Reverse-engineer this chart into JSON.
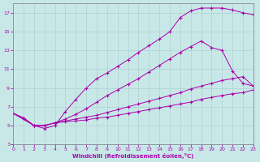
{
  "bg_color": "#c8e8e8",
  "line_color": "#aa00aa",
  "xlabel": "Windchill (Refroidissement éolien,°C)",
  "xlim": [
    0,
    23
  ],
  "ylim": [
    3,
    18
  ],
  "xticks": [
    0,
    1,
    2,
    3,
    4,
    5,
    6,
    7,
    8,
    9,
    10,
    11,
    12,
    13,
    14,
    15,
    16,
    17,
    18,
    19,
    20,
    21,
    22,
    23
  ],
  "yticks": [
    3,
    5,
    7,
    9,
    11,
    13,
    15,
    17
  ],
  "curve_top_x": [
    0,
    2,
    3,
    4,
    5,
    6,
    7,
    8,
    9,
    10,
    11,
    12,
    13,
    14,
    15,
    16,
    17,
    18,
    19,
    20,
    21,
    22,
    23
  ],
  "curve_top_y": [
    6.3,
    5.0,
    4.7,
    5.0,
    6.5,
    7.8,
    9.0,
    10.0,
    10.6,
    11.3,
    12.0,
    12.8,
    13.5,
    14.2,
    15.0,
    16.5,
    17.2,
    17.5,
    17.5,
    17.5,
    17.3,
    17.0,
    16.8
  ],
  "curve_mid_x": [
    0,
    1,
    2,
    3,
    4,
    5,
    6,
    7,
    8,
    9,
    10,
    11,
    12,
    13,
    14,
    15,
    16,
    17,
    18,
    19,
    20,
    21,
    22,
    23
  ],
  "curve_mid_y": [
    6.3,
    5.8,
    5.0,
    5.0,
    5.3,
    5.7,
    6.2,
    6.8,
    7.5,
    8.2,
    8.8,
    9.4,
    10.0,
    10.7,
    11.4,
    12.1,
    12.8,
    13.4,
    14.0,
    13.3,
    13.0,
    10.8,
    9.5,
    9.2
  ],
  "curve_low1_x": [
    0,
    1,
    2,
    3,
    4,
    5,
    6,
    7,
    8,
    9,
    10,
    11,
    12,
    13,
    14,
    15,
    16,
    17,
    18,
    19,
    20,
    21,
    22,
    23
  ],
  "curve_low1_y": [
    6.3,
    5.8,
    5.0,
    5.0,
    5.3,
    5.5,
    5.7,
    5.9,
    6.1,
    6.4,
    6.7,
    7.0,
    7.3,
    7.6,
    7.9,
    8.2,
    8.5,
    8.9,
    9.2,
    9.5,
    9.8,
    10.0,
    10.2,
    9.2
  ],
  "curve_low2_x": [
    0,
    1,
    2,
    3,
    4,
    5,
    6,
    7,
    8,
    9,
    10,
    11,
    12,
    13,
    14,
    15,
    16,
    17,
    18,
    19,
    20,
    21,
    22,
    23
  ],
  "curve_low2_y": [
    6.3,
    5.8,
    5.0,
    5.0,
    5.3,
    5.4,
    5.5,
    5.6,
    5.8,
    5.9,
    6.1,
    6.3,
    6.5,
    6.7,
    6.9,
    7.1,
    7.3,
    7.5,
    7.8,
    8.0,
    8.2,
    8.4,
    8.5,
    8.8
  ]
}
